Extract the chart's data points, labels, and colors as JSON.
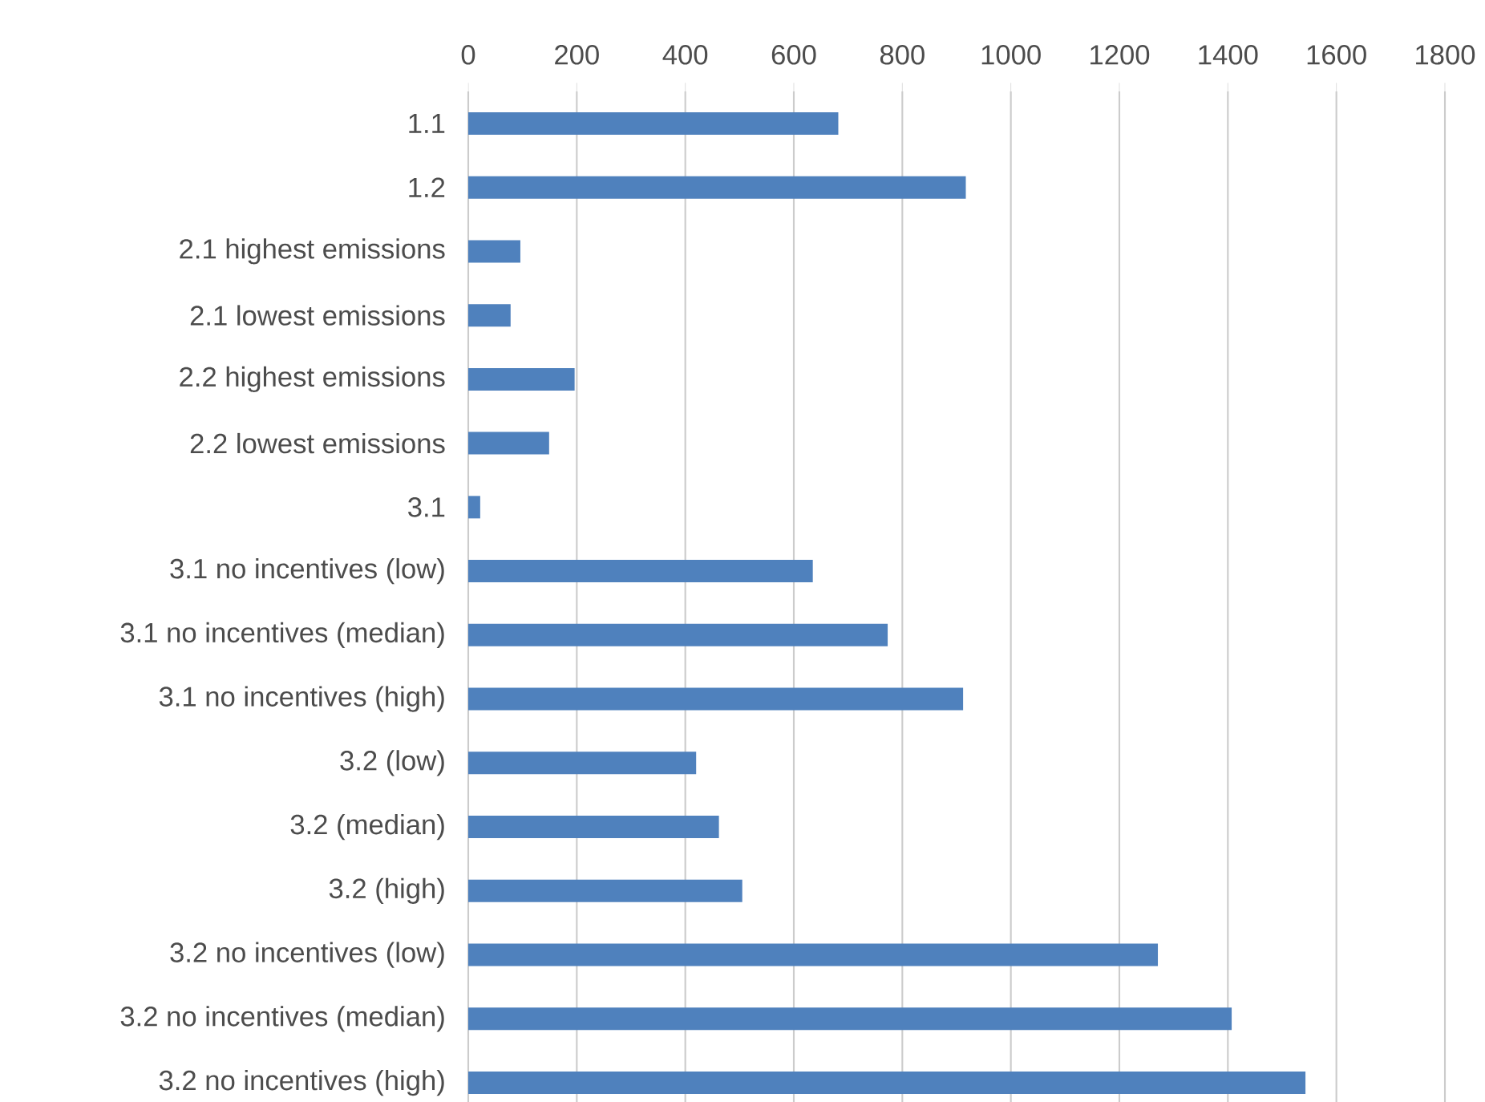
{
  "chart_data": {
    "type": "bar",
    "orientation": "horizontal",
    "categories": [
      "1.1",
      "1.2",
      "2.1 highest emissions",
      "2.1 lowest emissions",
      "2.2 highest emissions",
      "2.2 lowest emissions",
      "3.1",
      "3.1 no incentives (low)",
      "3.1 no incentives (median)",
      "3.1 no incentives (high)",
      "3.2 (low)",
      "3.2 (median)",
      "3.2 (high)",
      "3.2 no incentives (low)",
      "3.2 no incentives (median)",
      "3.2 no incentives (high)"
    ],
    "values": [
      682,
      917,
      96,
      78,
      196,
      149,
      22,
      635,
      773,
      912,
      420,
      462,
      505,
      1271,
      1407,
      1543
    ],
    "color": "#4f81bd",
    "xlim": [
      0,
      1800
    ],
    "xticks": [
      0,
      200,
      400,
      600,
      800,
      1000,
      1200,
      1400,
      1600,
      1800
    ],
    "grid": "x"
  }
}
